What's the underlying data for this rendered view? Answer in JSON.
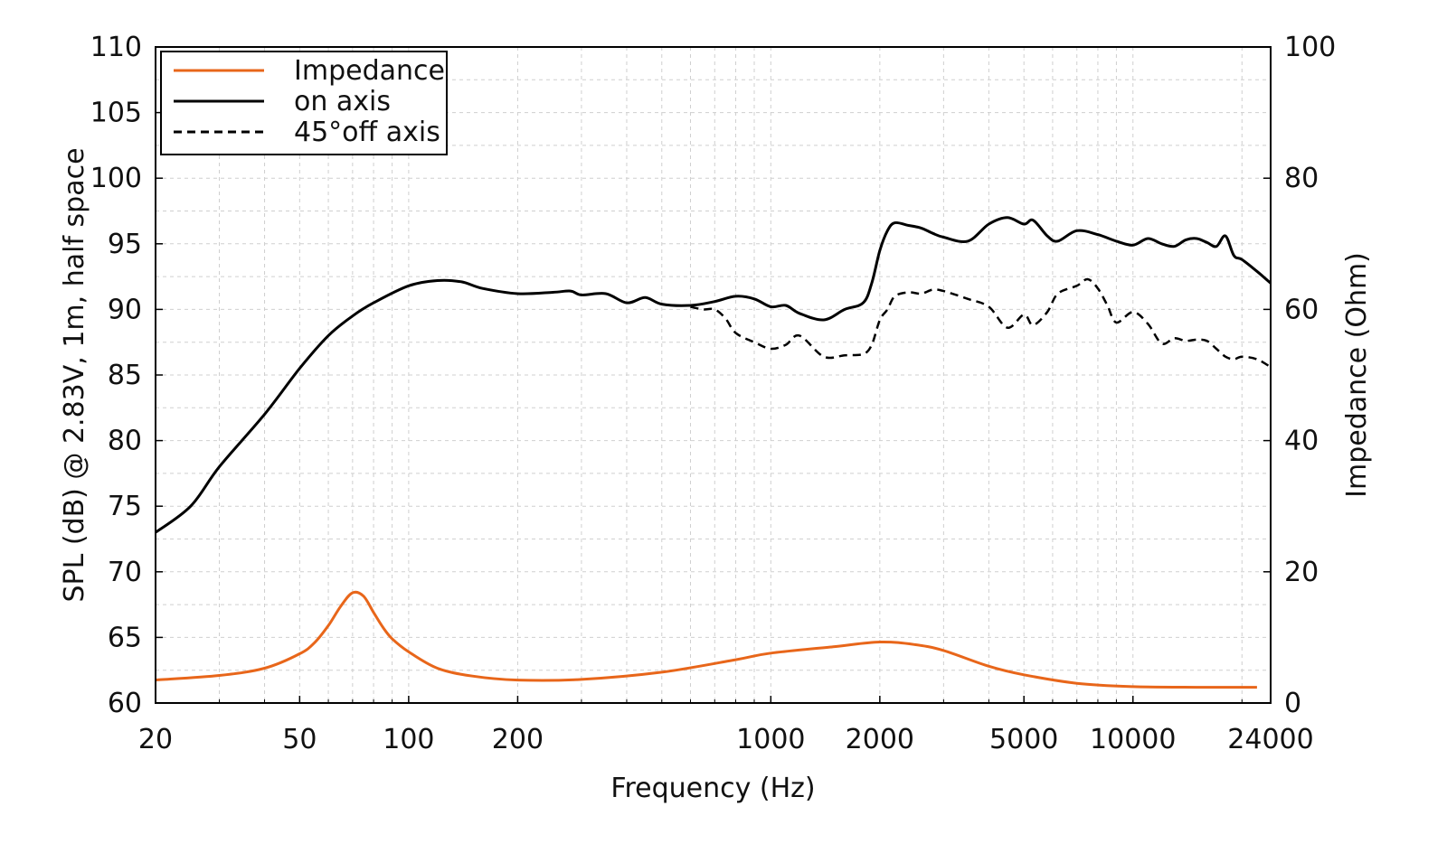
{
  "chart_data": {
    "type": "line",
    "title": "",
    "xlabel": "Frequency (Hz)",
    "ylabel": "SPL (dB) @ 2.83V, 1m, half space",
    "y2label": "Impedance (Ohm)",
    "xscale": "log",
    "xlim": [
      20,
      24000
    ],
    "ylim": [
      60,
      110
    ],
    "y2lim": [
      0,
      100
    ],
    "xticks": [
      20,
      50,
      100,
      200,
      1000,
      2000,
      5000,
      10000,
      24000
    ],
    "xtick_labels": [
      "20",
      "50",
      "100",
      "200",
      "1000",
      "2000",
      "5000",
      "10000",
      "24000"
    ],
    "yticks": [
      60,
      65,
      70,
      75,
      80,
      85,
      90,
      95,
      100,
      105,
      110
    ],
    "ytick_labels": [
      "60",
      "65",
      "70",
      "75",
      "80",
      "85",
      "90",
      "95",
      "100",
      "105",
      "110"
    ],
    "y2ticks": [
      0,
      20,
      40,
      60,
      80,
      100
    ],
    "y2tick_labels": [
      "0",
      "20",
      "40",
      "60",
      "80",
      "100"
    ],
    "grid": true,
    "legend_position": "top-left",
    "series": [
      {
        "name": "Impedance",
        "axis": "right",
        "color": "#e8661a",
        "style": "solid",
        "x": [
          20,
          30,
          40,
          50,
          55,
          60,
          65,
          70,
          75,
          80,
          85,
          90,
          100,
          120,
          150,
          200,
          300,
          500,
          800,
          1000,
          1500,
          2000,
          2500,
          3000,
          4000,
          5000,
          7000,
          10000,
          15000,
          22000
        ],
        "y": [
          3.5,
          4.2,
          5.3,
          7.5,
          9.2,
          11.8,
          14.8,
          16.8,
          16.3,
          13.8,
          11.5,
          9.8,
          7.8,
          5.3,
          4.1,
          3.5,
          3.6,
          4.7,
          6.6,
          7.6,
          8.6,
          9.3,
          8.9,
          8.0,
          5.6,
          4.3,
          3.0,
          2.5,
          2.4,
          2.4
        ]
      },
      {
        "name": "on axis",
        "axis": "left",
        "color": "#000000",
        "style": "solid",
        "x": [
          20,
          25,
          30,
          40,
          50,
          60,
          70,
          80,
          100,
          120,
          140,
          160,
          200,
          250,
          280,
          300,
          350,
          400,
          450,
          500,
          600,
          700,
          800,
          900,
          1000,
          1100,
          1200,
          1400,
          1600,
          1800,
          1900,
          2000,
          2100,
          2200,
          2400,
          2600,
          2800,
          3000,
          3500,
          4000,
          4500,
          5000,
          5300,
          5800,
          6200,
          7000,
          8000,
          9000,
          10000,
          11000,
          12000,
          13000,
          14000,
          15000,
          16000,
          17000,
          18000,
          19000,
          20000,
          22000,
          24000
        ],
        "y": [
          73.0,
          75.0,
          78.0,
          82.0,
          85.5,
          88.0,
          89.5,
          90.5,
          91.8,
          92.2,
          92.1,
          91.6,
          91.2,
          91.3,
          91.4,
          91.1,
          91.2,
          90.5,
          90.9,
          90.4,
          90.3,
          90.6,
          91.0,
          90.8,
          90.2,
          90.3,
          89.7,
          89.2,
          90.0,
          90.5,
          92.0,
          94.5,
          96.0,
          96.6,
          96.4,
          96.2,
          95.8,
          95.5,
          95.2,
          96.5,
          97.0,
          96.5,
          96.8,
          95.6,
          95.2,
          96.0,
          95.7,
          95.2,
          94.9,
          95.4,
          95.0,
          94.8,
          95.3,
          95.4,
          95.1,
          94.8,
          95.6,
          94.1,
          93.8,
          92.9,
          92.0
        ]
      },
      {
        "name": "45°off axis",
        "axis": "left",
        "color": "#000000",
        "style": "dashed",
        "x": [
          600,
          650,
          700,
          750,
          800,
          900,
          1000,
          1100,
          1200,
          1400,
          1600,
          1800,
          1900,
          2000,
          2100,
          2200,
          2400,
          2600,
          2800,
          3000,
          3500,
          4000,
          4500,
          5000,
          5300,
          5800,
          6200,
          7000,
          7500,
          8000,
          8500,
          9000,
          10000,
          11000,
          12000,
          13000,
          14000,
          15000,
          16000,
          17000,
          18000,
          19000,
          20000,
          22000,
          24000
        ],
        "y": [
          90.2,
          90.0,
          90.0,
          89.3,
          88.2,
          87.5,
          87.0,
          87.3,
          88.0,
          86.4,
          86.5,
          86.6,
          87.3,
          89.2,
          90.0,
          91.0,
          91.3,
          91.2,
          91.5,
          91.4,
          90.8,
          90.2,
          88.6,
          89.6,
          88.8,
          89.8,
          91.2,
          91.8,
          92.3,
          91.6,
          90.3,
          89.0,
          89.8,
          88.9,
          87.4,
          87.8,
          87.6,
          87.7,
          87.6,
          87.0,
          86.4,
          86.2,
          86.4,
          86.2,
          85.6
        ]
      }
    ]
  }
}
